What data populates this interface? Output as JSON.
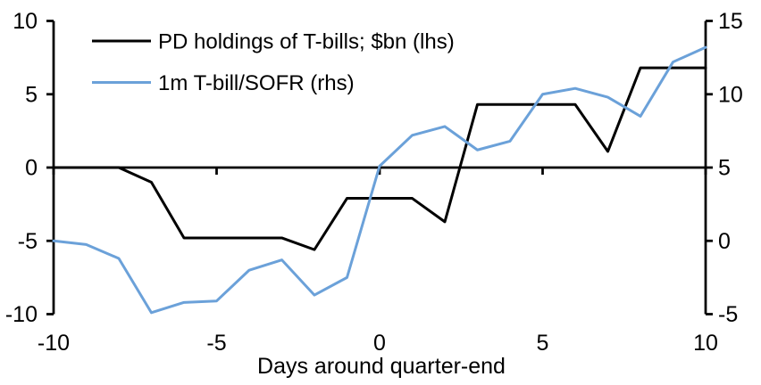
{
  "chart_data": {
    "type": "line",
    "title": "",
    "xlabel": "Days around quarter-end",
    "x": [
      -10,
      -9,
      -8,
      -7,
      -6,
      -5,
      -4,
      -3,
      -2,
      -1,
      0,
      1,
      2,
      3,
      4,
      5,
      6,
      7,
      8,
      9,
      10
    ],
    "series": [
      {
        "name": "PD holdings of T-bills; $bn (lhs)",
        "axis": "left",
        "color": "#000000",
        "values": [
          0,
          0,
          0,
          -1.0,
          -4.8,
          -4.8,
          -4.8,
          -4.8,
          -5.6,
          -2.1,
          -2.1,
          -2.1,
          -3.7,
          4.3,
          4.3,
          4.3,
          4.3,
          1.1,
          6.8,
          6.8,
          6.8
        ]
      },
      {
        "name": "1m T-bill/SOFR (rhs)",
        "axis": "right",
        "color": "#6BA1D9",
        "values": [
          0.0,
          -0.25,
          -1.2,
          -4.9,
          -4.2,
          -4.1,
          -2.0,
          -1.3,
          -3.7,
          -2.5,
          5.1,
          7.2,
          7.8,
          6.2,
          6.8,
          10.0,
          10.4,
          9.8,
          8.5,
          12.2,
          13.2
        ]
      }
    ],
    "left_axis": {
      "range": [
        -10,
        10
      ],
      "ticks": [
        10,
        5,
        0,
        -5,
        -10
      ]
    },
    "right_axis": {
      "range": [
        -5,
        15
      ],
      "ticks": [
        15,
        10,
        5,
        0,
        -5
      ]
    },
    "x_ticks": [
      -10,
      -5,
      0,
      5,
      10
    ],
    "x_tick_labels": [
      "-10",
      "-5",
      "0",
      "5",
      "10"
    ],
    "left_tick_labels": [
      "10",
      "5",
      "0",
      "-5",
      "-10"
    ],
    "right_tick_labels": [
      "15",
      "10",
      "5",
      "0",
      "-5"
    ],
    "grid": false,
    "legend_position": "top-left",
    "axis_color": "#000000",
    "background_color": "#ffffff"
  }
}
